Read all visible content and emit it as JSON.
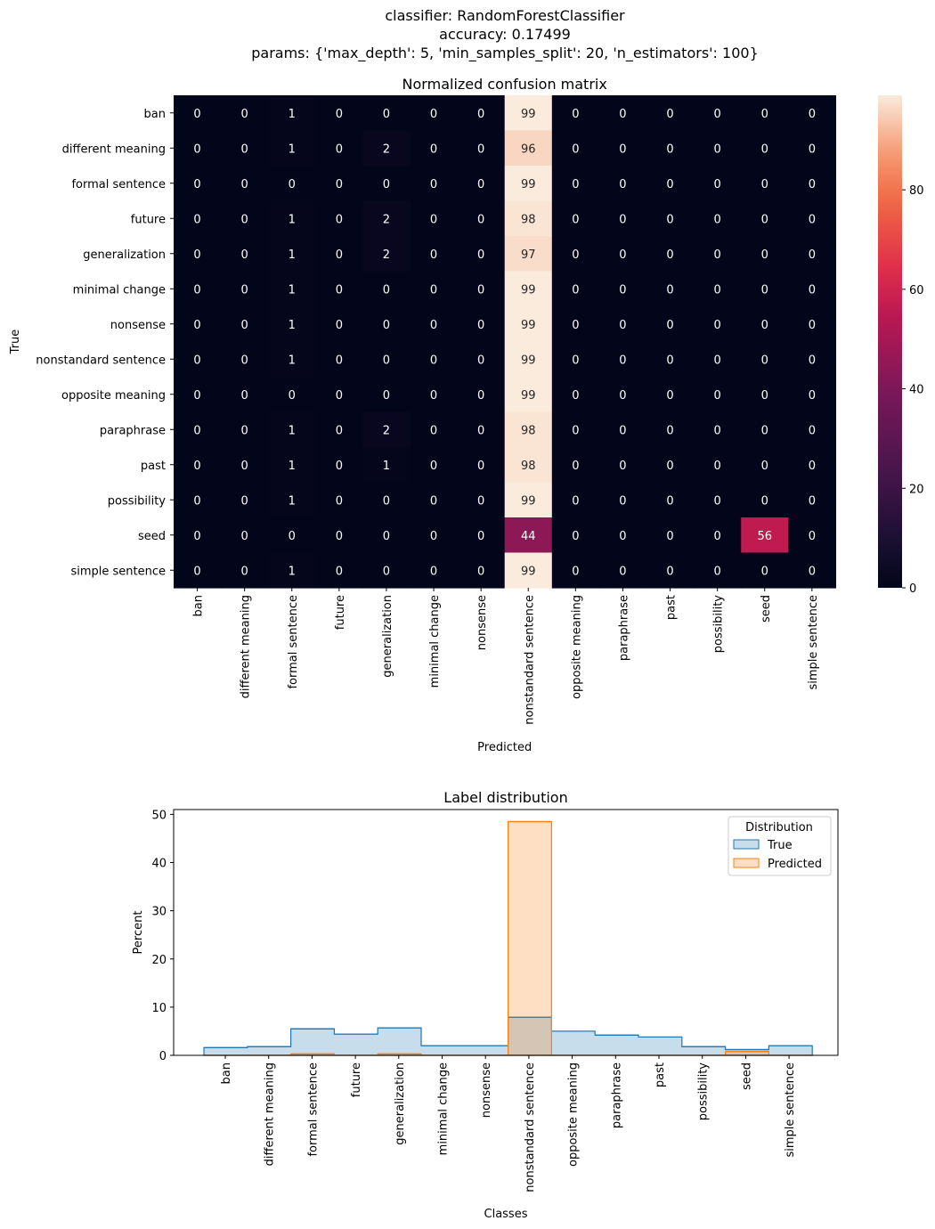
{
  "figure": {
    "title_lines": [
      "classifier: RandomForestClassifier",
      "accuracy: 0.17499",
      "params: {'max_depth': 5, 'min_samples_split': 20, 'n_estimators': 100}"
    ]
  },
  "chart_data": [
    {
      "type": "heatmap",
      "title": "Normalized confusion matrix",
      "xlabel": "Predicted",
      "ylabel": "True",
      "x_categories": [
        "ban",
        "different meaning",
        "formal sentence",
        "future",
        "generalization",
        "minimal change",
        "nonsense",
        "nonstandard sentence",
        "opposite meaning",
        "paraphrase",
        "past",
        "possibility",
        "seed",
        "simple sentence"
      ],
      "y_categories": [
        "ban",
        "different meaning",
        "formal sentence",
        "future",
        "generalization",
        "minimal change",
        "nonsense",
        "nonstandard sentence",
        "opposite meaning",
        "paraphrase",
        "past",
        "possibility",
        "seed",
        "simple sentence"
      ],
      "values": [
        [
          0,
          0,
          1,
          0,
          0,
          0,
          0,
          99,
          0,
          0,
          0,
          0,
          0,
          0
        ],
        [
          0,
          0,
          1,
          0,
          2,
          0,
          0,
          96,
          0,
          0,
          0,
          0,
          0,
          0
        ],
        [
          0,
          0,
          0,
          0,
          0,
          0,
          0,
          99,
          0,
          0,
          0,
          0,
          0,
          0
        ],
        [
          0,
          0,
          1,
          0,
          2,
          0,
          0,
          98,
          0,
          0,
          0,
          0,
          0,
          0
        ],
        [
          0,
          0,
          1,
          0,
          2,
          0,
          0,
          97,
          0,
          0,
          0,
          0,
          0,
          0
        ],
        [
          0,
          0,
          1,
          0,
          0,
          0,
          0,
          99,
          0,
          0,
          0,
          0,
          0,
          0
        ],
        [
          0,
          0,
          1,
          0,
          0,
          0,
          0,
          99,
          0,
          0,
          0,
          0,
          0,
          0
        ],
        [
          0,
          0,
          1,
          0,
          0,
          0,
          0,
          99,
          0,
          0,
          0,
          0,
          0,
          0
        ],
        [
          0,
          0,
          0,
          0,
          0,
          0,
          0,
          99,
          0,
          0,
          0,
          0,
          0,
          0
        ],
        [
          0,
          0,
          1,
          0,
          2,
          0,
          0,
          98,
          0,
          0,
          0,
          0,
          0,
          0
        ],
        [
          0,
          0,
          1,
          0,
          1,
          0,
          0,
          98,
          0,
          0,
          0,
          0,
          0,
          0
        ],
        [
          0,
          0,
          1,
          0,
          0,
          0,
          0,
          99,
          0,
          0,
          0,
          0,
          0,
          0
        ],
        [
          0,
          0,
          0,
          0,
          0,
          0,
          0,
          44,
          0,
          0,
          0,
          0,
          56,
          0
        ],
        [
          0,
          0,
          1,
          0,
          0,
          0,
          0,
          99,
          0,
          0,
          0,
          0,
          0,
          0
        ]
      ],
      "colorbar": {
        "range": [
          0,
          99
        ],
        "ticks": [
          0,
          20,
          40,
          60,
          80
        ],
        "colormap": "rocket"
      }
    },
    {
      "type": "area",
      "title": "Label distribution",
      "xlabel": "Classes",
      "ylabel": "Percent",
      "ylim": [
        0,
        51
      ],
      "yticks": [
        0,
        10,
        20,
        30,
        40,
        50
      ],
      "categories": [
        "ban",
        "different meaning",
        "formal sentence",
        "future",
        "generalization",
        "minimal change",
        "nonsense",
        "nonstandard sentence",
        "opposite meaning",
        "paraphrase",
        "past",
        "possibility",
        "seed",
        "simple sentence"
      ],
      "legend": {
        "title": "Distribution",
        "placement": "top-right"
      },
      "series": [
        {
          "name": "True",
          "color": "#1f77b4",
          "values": [
            1.6,
            1.8,
            5.5,
            4.4,
            5.7,
            2.0,
            2.0,
            7.9,
            5.0,
            4.2,
            3.8,
            1.8,
            1.2,
            2.0
          ]
        },
        {
          "name": "Predicted",
          "color": "#ff7f0e",
          "values": [
            0,
            0,
            0.3,
            0,
            0.3,
            0,
            0,
            48.5,
            0,
            0,
            0,
            0,
            0.8,
            0
          ]
        }
      ]
    }
  ]
}
